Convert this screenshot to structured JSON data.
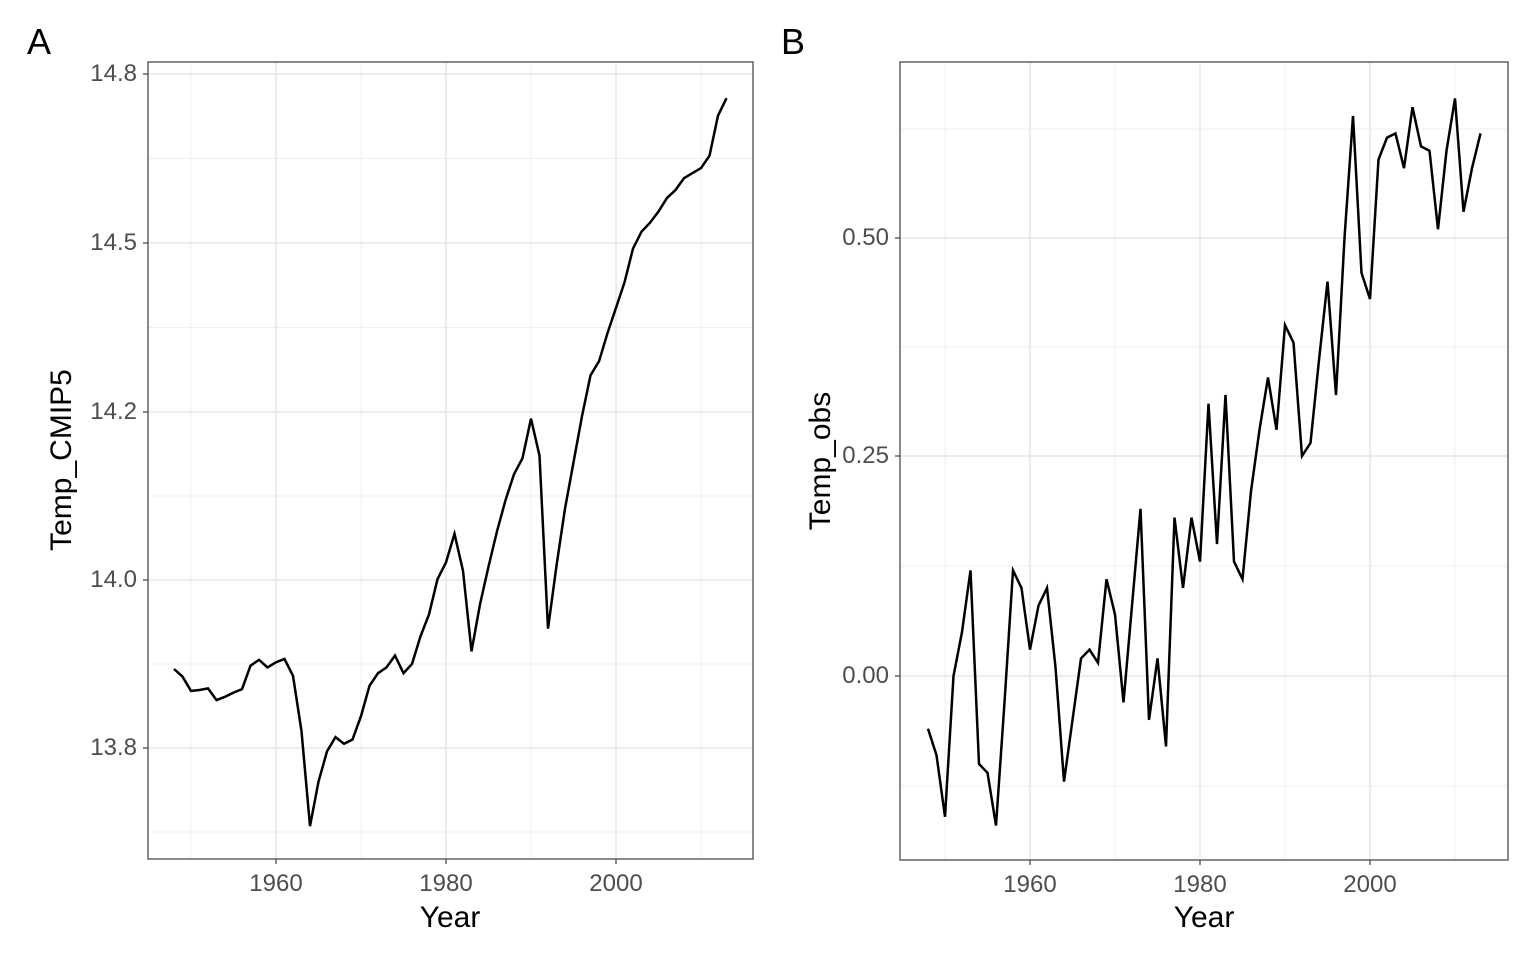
{
  "figure": {
    "background_color": "#ffffff",
    "line_color": "#000000",
    "panel_border_color": "#595959",
    "major_grid_color": "#e2e2e2",
    "minor_grid_color": "#efefef",
    "tick_label_color": "#4d4d4d",
    "panels": [
      {
        "id": "A",
        "tag": "A",
        "x_label": "Year",
        "y_label": "Temp_CMIP5",
        "x_tick_labels": [
          "1960",
          "1980",
          "2000"
        ],
        "y_tick_labels": [
          "14.8",
          "14.5",
          "14.2",
          "14.0",
          "13.8"
        ]
      },
      {
        "id": "B",
        "tag": "B",
        "x_label": "Year",
        "y_label": "Temp_obs",
        "x_tick_labels": [
          "1960",
          "1980",
          "2000"
        ],
        "y_tick_labels": [
          "0.50",
          "0.25",
          "0.00"
        ]
      }
    ]
  },
  "chart_data": [
    {
      "type": "line",
      "panel": "A",
      "title": "",
      "xlabel": "Year",
      "ylabel": "Temp_CMIP5",
      "legend": false,
      "grid": true,
      "line_color": "#000000",
      "x_ticks": [
        1960,
        1980,
        2000
      ],
      "y_ticks": [
        14.8,
        14.5,
        14.2,
        14.0,
        13.8
      ],
      "x_range": [
        1948,
        2013
      ],
      "x": [
        1948,
        1949,
        1950,
        1951,
        1952,
        1953,
        1954,
        1955,
        1956,
        1957,
        1958,
        1959,
        1960,
        1961,
        1962,
        1963,
        1964,
        1965,
        1966,
        1967,
        1968,
        1969,
        1970,
        1971,
        1972,
        1973,
        1974,
        1975,
        1976,
        1977,
        1978,
        1979,
        1980,
        1981,
        1982,
        1983,
        1984,
        1985,
        1986,
        1987,
        1988,
        1989,
        1990,
        1991,
        1992,
        1993,
        1994,
        1995,
        1996,
        1997,
        1998,
        1999,
        2000,
        2001,
        2002,
        2003,
        2004,
        2005,
        2006,
        2007,
        2008,
        2009,
        2010,
        2011,
        2012,
        2013
      ],
      "y": [
        13.894,
        13.885,
        13.868,
        13.869,
        13.871,
        13.857,
        13.861,
        13.866,
        13.87,
        13.898,
        13.905,
        13.896,
        13.902,
        13.906,
        13.886,
        13.82,
        13.707,
        13.76,
        13.796,
        13.813,
        13.805,
        13.81,
        13.838,
        13.874,
        13.889,
        13.896,
        13.91,
        13.889,
        13.9,
        13.933,
        13.959,
        14.001,
        14.021,
        14.055,
        14.011,
        13.915,
        13.971,
        14.016,
        14.058,
        14.095,
        14.126,
        14.145,
        14.192,
        14.148,
        13.942,
        14.017,
        14.085,
        14.14,
        14.195,
        14.265,
        14.29,
        14.34,
        14.385,
        14.43,
        14.49,
        14.52,
        14.536,
        14.556,
        14.58,
        14.594,
        14.615,
        14.624,
        14.633,
        14.655,
        14.726,
        14.757
      ]
    },
    {
      "type": "line",
      "panel": "B",
      "title": "",
      "xlabel": "Year",
      "ylabel": "Temp_obs",
      "legend": false,
      "grid": true,
      "line_color": "#000000",
      "x_ticks": [
        1960,
        1980,
        2000
      ],
      "y_ticks": [
        0.5,
        0.25,
        0.0
      ],
      "x_range": [
        1948,
        2013
      ],
      "x": [
        1948,
        1949,
        1950,
        1951,
        1952,
        1953,
        1954,
        1955,
        1956,
        1957,
        1958,
        1959,
        1960,
        1961,
        1962,
        1963,
        1964,
        1965,
        1966,
        1967,
        1968,
        1969,
        1970,
        1971,
        1972,
        1973,
        1974,
        1975,
        1976,
        1977,
        1978,
        1979,
        1980,
        1981,
        1982,
        1983,
        1984,
        1985,
        1986,
        1987,
        1988,
        1989,
        1990,
        1991,
        1992,
        1993,
        1994,
        1995,
        1996,
        1997,
        1998,
        1999,
        2000,
        2001,
        2002,
        2003,
        2004,
        2005,
        2006,
        2007,
        2008,
        2009,
        2010,
        2011,
        2012,
        2013
      ],
      "y": [
        -0.06,
        -0.09,
        -0.16,
        0.0,
        0.05,
        0.12,
        -0.1,
        -0.11,
        -0.17,
        -0.03,
        0.12,
        0.1,
        0.03,
        0.08,
        0.1,
        0.01,
        -0.12,
        -0.05,
        0.02,
        0.03,
        0.015,
        0.11,
        0.07,
        -0.03,
        0.08,
        0.19,
        -0.05,
        0.02,
        -0.08,
        0.18,
        0.1,
        0.18,
        0.13,
        0.31,
        0.15,
        0.32,
        0.13,
        0.11,
        0.21,
        0.28,
        0.34,
        0.28,
        0.4,
        0.38,
        0.25,
        0.265,
        0.36,
        0.45,
        0.32,
        0.5,
        0.64,
        0.46,
        0.43,
        0.59,
        0.615,
        0.62,
        0.58,
        0.65,
        0.605,
        0.6,
        0.51,
        0.6,
        0.66,
        0.53,
        0.58,
        0.62
      ]
    }
  ]
}
